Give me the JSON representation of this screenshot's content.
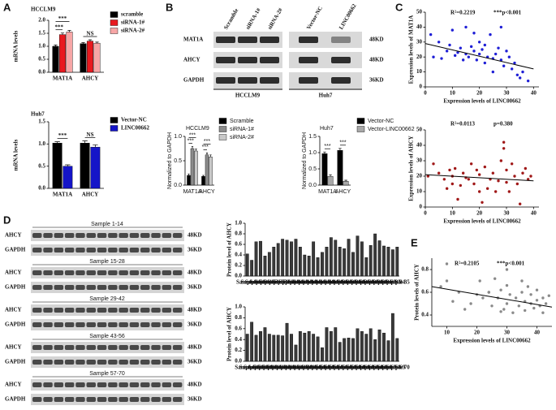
{
  "panel_labels": [
    "A",
    "B",
    "C",
    "D",
    "E"
  ],
  "blot_b": {
    "columns": [
      "Scramble",
      "siRNA-1#",
      "siRNA-2#",
      "Vector-NC",
      "LINC00662"
    ],
    "rows": [
      {
        "label": "MAT1A",
        "size": "48KD"
      },
      {
        "label": "AHCY",
        "size": "48KD"
      },
      {
        "label": "GAPDH",
        "size": "36KD"
      }
    ],
    "groups": [
      "HCCLM9",
      "Huh7"
    ]
  },
  "blot_d": {
    "groups": [
      "Sample 1-14",
      "Sample 15-28",
      "Sample 29-42",
      "Sample 43-56",
      "Sample 57-70"
    ],
    "rows": [
      {
        "label": "AHCY",
        "size": "48KD"
      },
      {
        "label": "GAPDH",
        "size": "36KD"
      }
    ]
  },
  "chart_data": [
    {
      "type": "bar",
      "title": "HCCLM9",
      "title_color": "#c8963c",
      "y_label": "mRNA levels",
      "categories": [
        "MAT1A",
        "AHCY"
      ],
      "series": [
        {
          "name": "scramble",
          "color": "#000000",
          "values": [
            1.0,
            1.1
          ],
          "errors": [
            0.05,
            0.04
          ]
        },
        {
          "name": "siRNA-1#",
          "color": "#e8191f",
          "values": [
            1.45,
            1.2
          ],
          "errors": [
            0.06,
            0.05
          ]
        },
        {
          "name": "siRNA-2#",
          "color": "#f7a6a6",
          "values": [
            1.55,
            1.12
          ],
          "errors": [
            0.06,
            0.04
          ]
        }
      ],
      "ylim": [
        0,
        2
      ],
      "yticks": [
        {
          "value": 0,
          "label": "0.0"
        },
        {
          "value": 0.5,
          "label": "0.5"
        },
        {
          "value": 1,
          "label": "1.0"
        },
        {
          "value": 1.5,
          "label": "1.5"
        },
        {
          "value": 2,
          "label": "2.0"
        }
      ],
      "annotations": [
        "***",
        "***",
        "NS"
      ]
    },
    {
      "type": "bar",
      "title": "Huh7",
      "title_color": "#c8963c",
      "y_label": "mRNA levels",
      "categories": [
        "MAT1A",
        "AHCY"
      ],
      "series": [
        {
          "name": "Vector-NC",
          "color": "#000000",
          "values": [
            1.02,
            1.02
          ],
          "errors": [
            0.03,
            0.05
          ]
        },
        {
          "name": "LINC00662",
          "color": "#1515c8",
          "values": [
            0.5,
            0.93
          ],
          "errors": [
            0.03,
            0.05
          ]
        }
      ],
      "ylim": [
        0,
        1.5
      ],
      "yticks": [
        {
          "value": 0,
          "label": "0.0"
        },
        {
          "value": 0.5,
          "label": "0.5"
        },
        {
          "value": 1,
          "label": "1.0"
        },
        {
          "value": 1.5,
          "label": "1.5"
        }
      ],
      "annotations": [
        "***",
        "NS"
      ]
    },
    {
      "type": "bar",
      "title": "HCCLM9",
      "title_color": "#c8963c",
      "y_label": "Normalized to GAPDH",
      "categories": [
        "MAT1A",
        "AHCY"
      ],
      "series": [
        {
          "name": "Scramble",
          "color": "#000000",
          "values": [
            0.2,
            0.18
          ],
          "errors": [
            0.03,
            0.02
          ]
        },
        {
          "name": "siRNA-1#",
          "color": "#8c8c8c",
          "values": [
            0.75,
            0.62
          ],
          "errors": [
            0.04,
            0.04
          ]
        },
        {
          "name": "siRNA-2#",
          "color": "#c8c8c8",
          "values": [
            0.7,
            0.58
          ],
          "errors": [
            0.04,
            0.04
          ]
        }
      ],
      "ylim": [
        0,
        1
      ],
      "yticks": [
        {
          "value": 0,
          "label": "0.0"
        },
        {
          "value": 0.5,
          "label": "0.5"
        },
        {
          "value": 1,
          "label": "1.0"
        }
      ],
      "annotations": [
        "***",
        "***",
        "***",
        "***"
      ]
    },
    {
      "type": "bar",
      "title": "Huh7",
      "title_color": "#c8963c",
      "y_label": "Normalized to GAPDH",
      "categories": [
        "MAT1A",
        "AHCY"
      ],
      "series": [
        {
          "name": "Vector-NC",
          "color": "#000000",
          "values": [
            0.97,
            1.07
          ],
          "errors": [
            0.05,
            0.06
          ]
        },
        {
          "name": "Vector-LINC00662",
          "color": "#a8a8a8",
          "values": [
            0.27,
            0.12
          ],
          "errors": [
            0.05,
            0.03
          ]
        }
      ],
      "ylim": [
        0,
        1.5
      ],
      "yticks": [
        {
          "value": 0,
          "label": "0.0"
        },
        {
          "value": 0.5,
          "label": "0.5"
        },
        {
          "value": 1,
          "label": "1.0"
        },
        {
          "value": 1.5,
          "label": "1.5"
        }
      ],
      "annotations": [
        "***",
        "***"
      ]
    },
    {
      "type": "scatter",
      "x_label": "Expression levels of LINC00662",
      "y_label": "Expression levels of MAT1A",
      "color": "#1f1fd6",
      "x": [
        2,
        3,
        5,
        6,
        8,
        9,
        10,
        11,
        12,
        13,
        14,
        15,
        15,
        16,
        17,
        18,
        18,
        19,
        20,
        20,
        21,
        22,
        22,
        23,
        24,
        25,
        25,
        26,
        27,
        28,
        28,
        29,
        30,
        31,
        32,
        33,
        34,
        35,
        36,
        38
      ],
      "values": [
        35,
        20,
        30,
        19,
        24,
        28,
        38,
        21,
        23,
        26,
        18,
        40,
        22,
        20,
        27,
        24,
        36,
        18,
        22,
        30,
        25,
        16,
        28,
        20,
        35,
        19,
        10,
        22,
        26,
        18,
        40,
        14,
        24,
        20,
        12,
        16,
        8,
        6,
        10,
        4
      ],
      "fit": {
        "x": [
          0,
          40
        ],
        "values": [
          29,
          12
        ]
      },
      "xlim": [
        0,
        42
      ],
      "xticks": [
        0,
        10,
        20,
        30,
        40
      ],
      "ylim": [
        0,
        50
      ],
      "yticks": [
        0,
        10,
        20,
        30,
        40,
        50
      ],
      "annotations": [
        "R²=0.2219",
        "***p<0.001"
      ]
    },
    {
      "type": "scatter",
      "x_label": "Expression levels of LINC00662",
      "y_label": "Expression levels of AHCY",
      "color": "#a01818",
      "x": [
        1,
        3,
        5,
        7,
        8,
        9,
        10,
        11,
        12,
        13,
        14,
        15,
        16,
        17,
        18,
        19,
        20,
        21,
        22,
        23,
        24,
        25,
        26,
        27,
        28,
        29,
        29,
        30,
        30,
        31,
        32,
        33,
        34,
        35,
        36,
        37,
        38,
        39,
        10,
        20
      ],
      "values": [
        20,
        28,
        22,
        18,
        12,
        24,
        20,
        25,
        5,
        14,
        22,
        19,
        18,
        28,
        15,
        24,
        21,
        3,
        26,
        12,
        18,
        22,
        10,
        17,
        30,
        38,
        42,
        24,
        16,
        10,
        28,
        20,
        15,
        2,
        22,
        25,
        18,
        20,
        15,
        10
      ],
      "fit": {
        "x": [
          0,
          40
        ],
        "values": [
          21,
          17
        ]
      },
      "xlim": [
        0,
        42
      ],
      "xticks": [
        0,
        10,
        20,
        30,
        40
      ],
      "ylim": [
        0,
        50
      ],
      "yticks": [
        0,
        10,
        20,
        30,
        40,
        50
      ],
      "annotations": [
        "R²=0.0113",
        "p=0.380"
      ]
    },
    {
      "type": "bar",
      "y_label": "Protein level of AHCY",
      "color": "#3a3a3a",
      "categories": [
        "Sample 1",
        "Sample 2",
        "Sample 3",
        "Sample 4",
        "Sample 5",
        "Sample 6",
        "Sample 7",
        "Sample 8",
        "Sample 9",
        "Sample 10",
        "Sample 11",
        "Sample 12",
        "Sample 13",
        "Sample 14",
        "Sample 15",
        "Sample 16",
        "Sample 17",
        "Sample 18",
        "Sample 19",
        "Sample 20",
        "Sample 21",
        "Sample 22",
        "Sample 23",
        "Sample 24",
        "Sample 25",
        "Sample 26",
        "Sample 27",
        "Sample 28",
        "Sample 29",
        "Sample 30",
        "Sample 31",
        "Sample 32",
        "Sample 33",
        "Sample 34",
        "Sample 35"
      ],
      "values": [
        0.42,
        0.3,
        0.65,
        0.66,
        0.38,
        0.45,
        0.55,
        0.62,
        0.7,
        0.68,
        0.65,
        0.7,
        0.55,
        0.4,
        0.38,
        0.65,
        0.35,
        0.45,
        0.55,
        0.73,
        0.68,
        0.55,
        0.52,
        0.7,
        0.45,
        0.76,
        0.65,
        0.35,
        0.58,
        0.8,
        0.67,
        0.57,
        0.55,
        0.5,
        0.55
      ],
      "ylim": [
        0,
        1
      ],
      "yticks": [
        {
          "value": 0,
          "label": "0.0"
        },
        {
          "value": 0.2,
          "label": "0.2"
        },
        {
          "value": 0.4,
          "label": "0.4"
        },
        {
          "value": 0.6,
          "label": "0.6"
        },
        {
          "value": 0.8,
          "label": "0.8"
        },
        {
          "value": 1,
          "label": "1.0"
        }
      ]
    },
    {
      "type": "bar",
      "y_label": "Protein level of AHCY",
      "color": "#3a3a3a",
      "categories": [
        "Sample 36",
        "Sample 37",
        "Sample 38",
        "Sample 39",
        "Sample 40",
        "Sample 41",
        "Sample 42",
        "Sample 43",
        "Sample 44",
        "Sample 45",
        "Sample 46",
        "Sample 47",
        "Sample 48",
        "Sample 49",
        "Sample 50",
        "Sample 51",
        "Sample 52",
        "Sample 53",
        "Sample 54",
        "Sample 55",
        "Sample 56",
        "Sample 57",
        "Sample 58",
        "Sample 59",
        "Sample 60",
        "Sample 61",
        "Sample 62",
        "Sample 63",
        "Sample 64",
        "Sample 65",
        "Sample 66",
        "Sample 67",
        "Sample 68",
        "Sample 69",
        "Sample 70"
      ],
      "values": [
        0.5,
        0.72,
        0.48,
        0.55,
        0.62,
        0.5,
        0.48,
        0.48,
        0.47,
        0.7,
        0.5,
        0.3,
        0.55,
        0.52,
        0.55,
        0.5,
        0.45,
        0.25,
        0.62,
        0.55,
        0.62,
        0.35,
        0.42,
        0.43,
        0.42,
        0.6,
        0.55,
        0.5,
        0.6,
        0.4,
        0.58,
        0.52,
        0.38,
        0.88,
        0.42
      ],
      "ylim": [
        0,
        1
      ],
      "yticks": [
        {
          "value": 0,
          "label": "0.0"
        },
        {
          "value": 0.2,
          "label": "0.2"
        },
        {
          "value": 0.4,
          "label": "0.4"
        },
        {
          "value": 0.6,
          "label": "0.6"
        },
        {
          "value": 0.8,
          "label": "0.8"
        },
        {
          "value": 1,
          "label": "1.0"
        }
      ]
    },
    {
      "type": "scatter",
      "x_label": "Expression levels of LINC00662",
      "y_label": "Protein levels of AHCY",
      "color": "#8a8a8a",
      "x": [
        8,
        10,
        12,
        14,
        16,
        18,
        20,
        21,
        22,
        24,
        25,
        26,
        27,
        28,
        29,
        30,
        30,
        31,
        32,
        33,
        34,
        35,
        36,
        36,
        37,
        38,
        38,
        39,
        40,
        40,
        41,
        42,
        42,
        43,
        44,
        10,
        24,
        30,
        35,
        28
      ],
      "values": [
        0.65,
        0.7,
        0.52,
        0.6,
        0.45,
        0.5,
        0.58,
        0.7,
        0.55,
        0.6,
        0.48,
        0.72,
        0.55,
        0.62,
        0.45,
        0.5,
        0.66,
        0.58,
        0.42,
        0.55,
        0.48,
        0.6,
        0.52,
        0.44,
        0.65,
        0.5,
        0.58,
        0.46,
        0.53,
        0.62,
        0.48,
        0.55,
        0.42,
        0.5,
        0.57,
        0.85,
        0.6,
        0.8,
        0.7,
        0.43
      ],
      "fit": {
        "x": [
          5,
          45
        ],
        "values": [
          0.65,
          0.47
        ]
      },
      "xlim": [
        5,
        45
      ],
      "xticks": [
        10,
        20,
        30,
        40
      ],
      "ylim": [
        0.3,
        0.9
      ],
      "yticks": [
        0.4,
        0.6,
        0.8
      ],
      "annotations": [
        "R²=0.2105",
        "***p<0.001"
      ]
    }
  ]
}
